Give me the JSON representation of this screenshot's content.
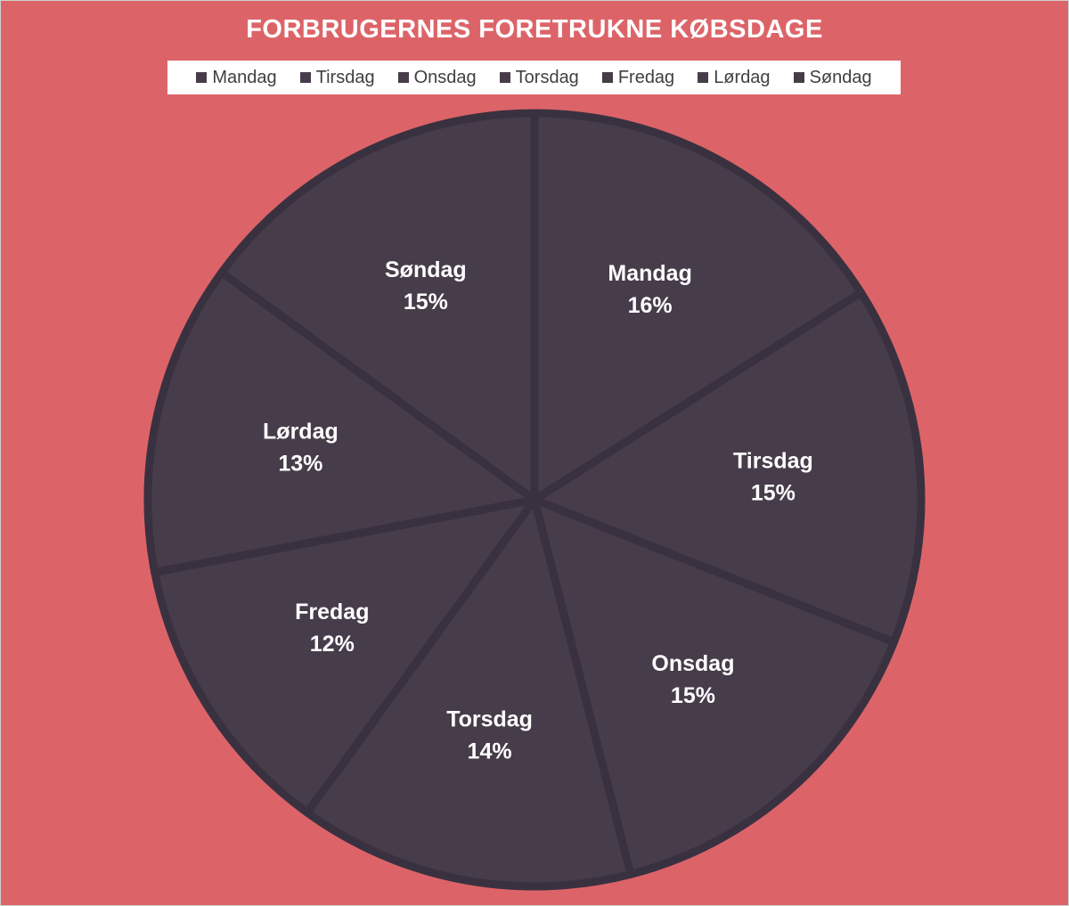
{
  "chart_data": {
    "type": "pie",
    "title": "FORBRUGERNES FORETRUKNE KØBSDAGE",
    "categories": [
      "Mandag",
      "Tirsdag",
      "Onsdag",
      "Torsdag",
      "Fredag",
      "Lørdag",
      "Søndag"
    ],
    "values": [
      16,
      15,
      15,
      14,
      12,
      13,
      15
    ],
    "value_labels": [
      "16%",
      "15%",
      "15%",
      "14%",
      "12%",
      "13%",
      "15%"
    ],
    "legend_position": "top",
    "colors": {
      "background": "#dc6468",
      "slice_fill": "#473c4a",
      "slice_border": "#3a3140",
      "label_text": "#ffffff"
    }
  }
}
